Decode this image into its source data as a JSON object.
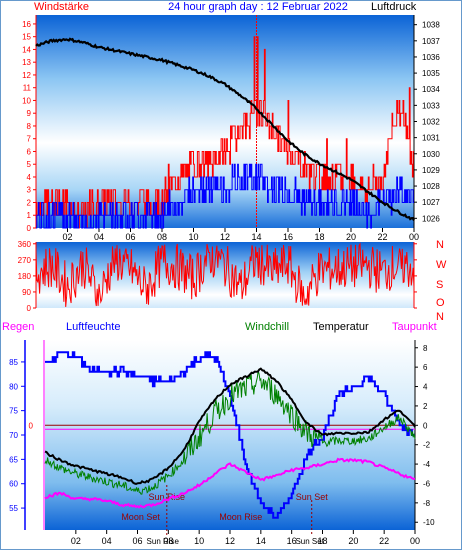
{
  "colors": {
    "red": "#ff0000",
    "blue": "#0000ff",
    "black": "#000000",
    "green": "#008000",
    "magenta": "#ff00ff",
    "darkred": "#990000",
    "frame_border": "#6699cc",
    "sky_top": "#0a66d8",
    "sky_mid": "#9fd0f5",
    "sky_bottom": "#ffffff"
  },
  "header": {
    "left": "Windstärke",
    "center": "24 hour graph day : 12 Februar 2022",
    "right": "Luftdruck"
  },
  "legend": {
    "regen": "Regen",
    "luftfeuchte": "Luftfeuchte",
    "windchill": "Windchill",
    "temperatur": "Temperatur",
    "taupunkt": "Taupunkt"
  },
  "compass": [
    "N",
    "W",
    "S",
    "O",
    "N"
  ],
  "annotations": {
    "sun_rise": "Sun Rise",
    "sun_set": "Sun Set",
    "moon_set": "Moon Set",
    "moon_rise": "Moon Rise"
  },
  "chart_data": [
    {
      "type": "line",
      "name": "wind_and_pressure",
      "x_ticks": [
        "02",
        "04",
        "06",
        "08",
        "10",
        "12",
        "14",
        "16",
        "18",
        "20",
        "22",
        "00"
      ],
      "y_left": [
        0,
        1,
        2,
        3,
        4,
        5,
        6,
        7,
        8,
        9,
        10,
        11,
        12,
        13,
        14,
        15,
        16
      ],
      "y_left_unit": "Windstärke",
      "y_right": [
        1026,
        1027,
        1028,
        1029,
        1030,
        1031,
        1032,
        1033,
        1034,
        1035,
        1036,
        1037,
        1038
      ],
      "y_right_unit": "Luftdruck",
      "pressure_hpa": [
        [
          0,
          1036.7
        ],
        [
          1,
          1037.0
        ],
        [
          2,
          1037.1
        ],
        [
          3,
          1036.9
        ],
        [
          4,
          1036.6
        ],
        [
          5,
          1036.4
        ],
        [
          6,
          1036.2
        ],
        [
          7,
          1036.0
        ],
        [
          8,
          1035.8
        ],
        [
          9,
          1035.5
        ],
        [
          10,
          1035.2
        ],
        [
          11,
          1034.8
        ],
        [
          12,
          1034.3
        ],
        [
          13,
          1033.6
        ],
        [
          14,
          1032.8
        ],
        [
          15,
          1031.8
        ],
        [
          16,
          1030.8
        ],
        [
          17,
          1030.0
        ],
        [
          18,
          1029.4
        ],
        [
          19,
          1028.9
        ],
        [
          20,
          1028.4
        ],
        [
          21,
          1027.7
        ],
        [
          22,
          1027.0
        ],
        [
          23,
          1026.4
        ],
        [
          24,
          1025.9
        ]
      ],
      "wind_gust_bft": [
        [
          0,
          2
        ],
        [
          1,
          2
        ],
        [
          2,
          2
        ],
        [
          3,
          1
        ],
        [
          4,
          2
        ],
        [
          5,
          2
        ],
        [
          6,
          2
        ],
        [
          7,
          2
        ],
        [
          8,
          2
        ],
        [
          9,
          4
        ],
        [
          10,
          5
        ],
        [
          11,
          5
        ],
        [
          12,
          6
        ],
        [
          13,
          8
        ],
        [
          14,
          9
        ],
        [
          15,
          8
        ],
        [
          16,
          6
        ],
        [
          17,
          5
        ],
        [
          18,
          4
        ],
        [
          19,
          4
        ],
        [
          20,
          4
        ],
        [
          21,
          3
        ],
        [
          22,
          4
        ],
        [
          23,
          10
        ],
        [
          24,
          5
        ]
      ],
      "wind_mean_bft": [
        [
          0,
          1
        ],
        [
          1,
          1
        ],
        [
          2,
          1
        ],
        [
          3,
          0
        ],
        [
          4,
          1
        ],
        [
          5,
          1
        ],
        [
          6,
          1
        ],
        [
          7,
          1
        ],
        [
          8,
          1
        ],
        [
          9,
          2
        ],
        [
          10,
          3
        ],
        [
          11,
          3
        ],
        [
          12,
          3
        ],
        [
          13,
          4
        ],
        [
          14,
          4
        ],
        [
          15,
          3
        ],
        [
          16,
          3
        ],
        [
          17,
          2
        ],
        [
          18,
          2
        ],
        [
          19,
          2
        ],
        [
          20,
          2
        ],
        [
          21,
          1
        ],
        [
          22,
          2
        ],
        [
          23,
          3
        ],
        [
          24,
          2
        ]
      ]
    },
    {
      "type": "line",
      "name": "wind_direction",
      "y_ticks": [
        0,
        90,
        180,
        270,
        360
      ],
      "direction_deg": [
        [
          0,
          200
        ],
        [
          1,
          240
        ],
        [
          2,
          120
        ],
        [
          3,
          250
        ],
        [
          4,
          60
        ],
        [
          5,
          280
        ],
        [
          6,
          220
        ],
        [
          7,
          100
        ],
        [
          8,
          260
        ],
        [
          9,
          230
        ],
        [
          10,
          160
        ],
        [
          11,
          300
        ],
        [
          12,
          240
        ],
        [
          13,
          110
        ],
        [
          14,
          280
        ],
        [
          15,
          200
        ],
        [
          16,
          250
        ],
        [
          17,
          60
        ],
        [
          18,
          210
        ],
        [
          19,
          220
        ],
        [
          20,
          230
        ],
        [
          21,
          240
        ],
        [
          22,
          200
        ],
        [
          23,
          250
        ],
        [
          24,
          220
        ]
      ]
    },
    {
      "type": "line",
      "name": "temperature_humidity",
      "y_left": [
        55,
        60,
        65,
        70,
        75,
        80,
        85
      ],
      "y_left_unit": "Luftfeuchte",
      "y_right": [
        -10,
        -8,
        -6,
        -4,
        -2,
        0,
        2,
        4,
        6,
        8
      ],
      "y_right_unit": "Temperatur",
      "rain_zero_label": "0",
      "humidity_pct": [
        [
          0,
          84
        ],
        [
          1,
          87
        ],
        [
          2,
          86
        ],
        [
          3,
          83
        ],
        [
          4,
          83
        ],
        [
          5,
          83
        ],
        [
          6,
          82
        ],
        [
          7,
          81
        ],
        [
          8,
          81
        ],
        [
          9,
          83
        ],
        [
          10,
          86
        ],
        [
          11,
          86
        ],
        [
          12,
          78
        ],
        [
          13,
          64
        ],
        [
          14,
          56
        ],
        [
          15,
          53
        ],
        [
          16,
          58
        ],
        [
          17,
          66
        ],
        [
          18,
          70
        ],
        [
          19,
          78
        ],
        [
          20,
          80
        ],
        [
          21,
          82
        ],
        [
          22,
          78
        ],
        [
          23,
          72
        ],
        [
          24,
          70
        ]
      ],
      "temperature_c": [
        [
          0,
          -2.8
        ],
        [
          1,
          -3.6
        ],
        [
          2,
          -4.2
        ],
        [
          3,
          -4.6
        ],
        [
          4,
          -5.0
        ],
        [
          5,
          -5.4
        ],
        [
          6,
          -6.0
        ],
        [
          7,
          -5.6
        ],
        [
          8,
          -4.4
        ],
        [
          9,
          -2.6
        ],
        [
          10,
          0.4
        ],
        [
          11,
          2.6
        ],
        [
          12,
          4.2
        ],
        [
          13,
          5.0
        ],
        [
          14,
          5.8
        ],
        [
          15,
          4.6
        ],
        [
          16,
          2.6
        ],
        [
          17,
          0.2
        ],
        [
          18,
          -1.0
        ],
        [
          19,
          -0.8
        ],
        [
          20,
          -0.8
        ],
        [
          21,
          -0.7
        ],
        [
          22,
          0.6
        ],
        [
          23,
          1.6
        ],
        [
          24,
          -0.2
        ]
      ],
      "windchill_c": [
        [
          0,
          -3.5
        ],
        [
          1,
          -4.4
        ],
        [
          2,
          -5.0
        ],
        [
          3,
          -5.4
        ],
        [
          4,
          -5.8
        ],
        [
          5,
          -6.2
        ],
        [
          6,
          -6.8
        ],
        [
          7,
          -6.4
        ],
        [
          8,
          -5.2
        ],
        [
          9,
          -3.6
        ],
        [
          10,
          -1.2
        ],
        [
          11,
          1.2
        ],
        [
          12,
          3.0
        ],
        [
          13,
          3.8
        ],
        [
          14,
          4.6
        ],
        [
          15,
          3.2
        ],
        [
          16,
          1.2
        ],
        [
          17,
          -0.8
        ],
        [
          18,
          -1.8
        ],
        [
          19,
          -1.6
        ],
        [
          20,
          -1.6
        ],
        [
          21,
          -1.4
        ],
        [
          22,
          -0.2
        ],
        [
          23,
          0.8
        ],
        [
          24,
          -1.2
        ]
      ],
      "dewpoint_c": [
        [
          0,
          -7.4
        ],
        [
          1,
          -7.0
        ],
        [
          2,
          -7.6
        ],
        [
          3,
          -7.6
        ],
        [
          4,
          -7.8
        ],
        [
          5,
          -8.2
        ],
        [
          6,
          -8.4
        ],
        [
          7,
          -8.2
        ],
        [
          8,
          -7.6
        ],
        [
          9,
          -7.0
        ],
        [
          10,
          -6.2
        ],
        [
          11,
          -5.0
        ],
        [
          12,
          -4.0
        ],
        [
          13,
          -4.8
        ],
        [
          14,
          -5.6
        ],
        [
          15,
          -5.2
        ],
        [
          16,
          -4.6
        ],
        [
          17,
          -4.4
        ],
        [
          18,
          -4.0
        ],
        [
          19,
          -3.6
        ],
        [
          20,
          -3.6
        ],
        [
          21,
          -3.8
        ],
        [
          22,
          -4.4
        ],
        [
          23,
          -5.0
        ],
        [
          24,
          -5.6
        ]
      ]
    }
  ]
}
